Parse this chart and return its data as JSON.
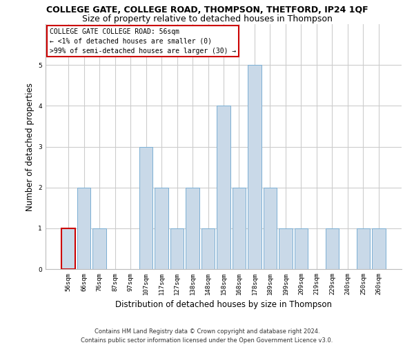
{
  "title": "COLLEGE GATE, COLLEGE ROAD, THOMPSON, THETFORD, IP24 1QF",
  "subtitle": "Size of property relative to detached houses in Thompson",
  "xlabel": "Distribution of detached houses by size in Thompson",
  "ylabel": "Number of detached properties",
  "categories": [
    "56sqm",
    "66sqm",
    "76sqm",
    "87sqm",
    "97sqm",
    "107sqm",
    "117sqm",
    "127sqm",
    "138sqm",
    "148sqm",
    "158sqm",
    "168sqm",
    "178sqm",
    "189sqm",
    "199sqm",
    "209sqm",
    "219sqm",
    "229sqm",
    "240sqm",
    "250sqm",
    "260sqm"
  ],
  "values": [
    1,
    2,
    1,
    0,
    0,
    3,
    2,
    1,
    2,
    1,
    4,
    2,
    5,
    2,
    1,
    1,
    0,
    1,
    0,
    1,
    1
  ],
  "bar_color": "#c9d9e8",
  "bar_edge_color": "#7bafd4",
  "highlight_bar_index": 0,
  "highlight_edge_color": "#cc0000",
  "annotation_box_color": "#ffffff",
  "annotation_border_color": "#cc0000",
  "annotation_text_lines": [
    "COLLEGE GATE COLLEGE ROAD: 56sqm",
    "← <1% of detached houses are smaller (0)",
    ">99% of semi-detached houses are larger (30) →"
  ],
  "ylim": [
    0,
    6
  ],
  "yticks": [
    0,
    1,
    2,
    3,
    4,
    5,
    6
  ],
  "grid_color": "#cccccc",
  "background_color": "#ffffff",
  "footer_line1": "Contains HM Land Registry data © Crown copyright and database right 2024.",
  "footer_line2": "Contains public sector information licensed under the Open Government Licence v3.0.",
  "title_fontsize": 9,
  "subtitle_fontsize": 9,
  "xlabel_fontsize": 8.5,
  "ylabel_fontsize": 8.5,
  "tick_fontsize": 6.5,
  "annotation_fontsize": 7,
  "footer_fontsize": 6
}
